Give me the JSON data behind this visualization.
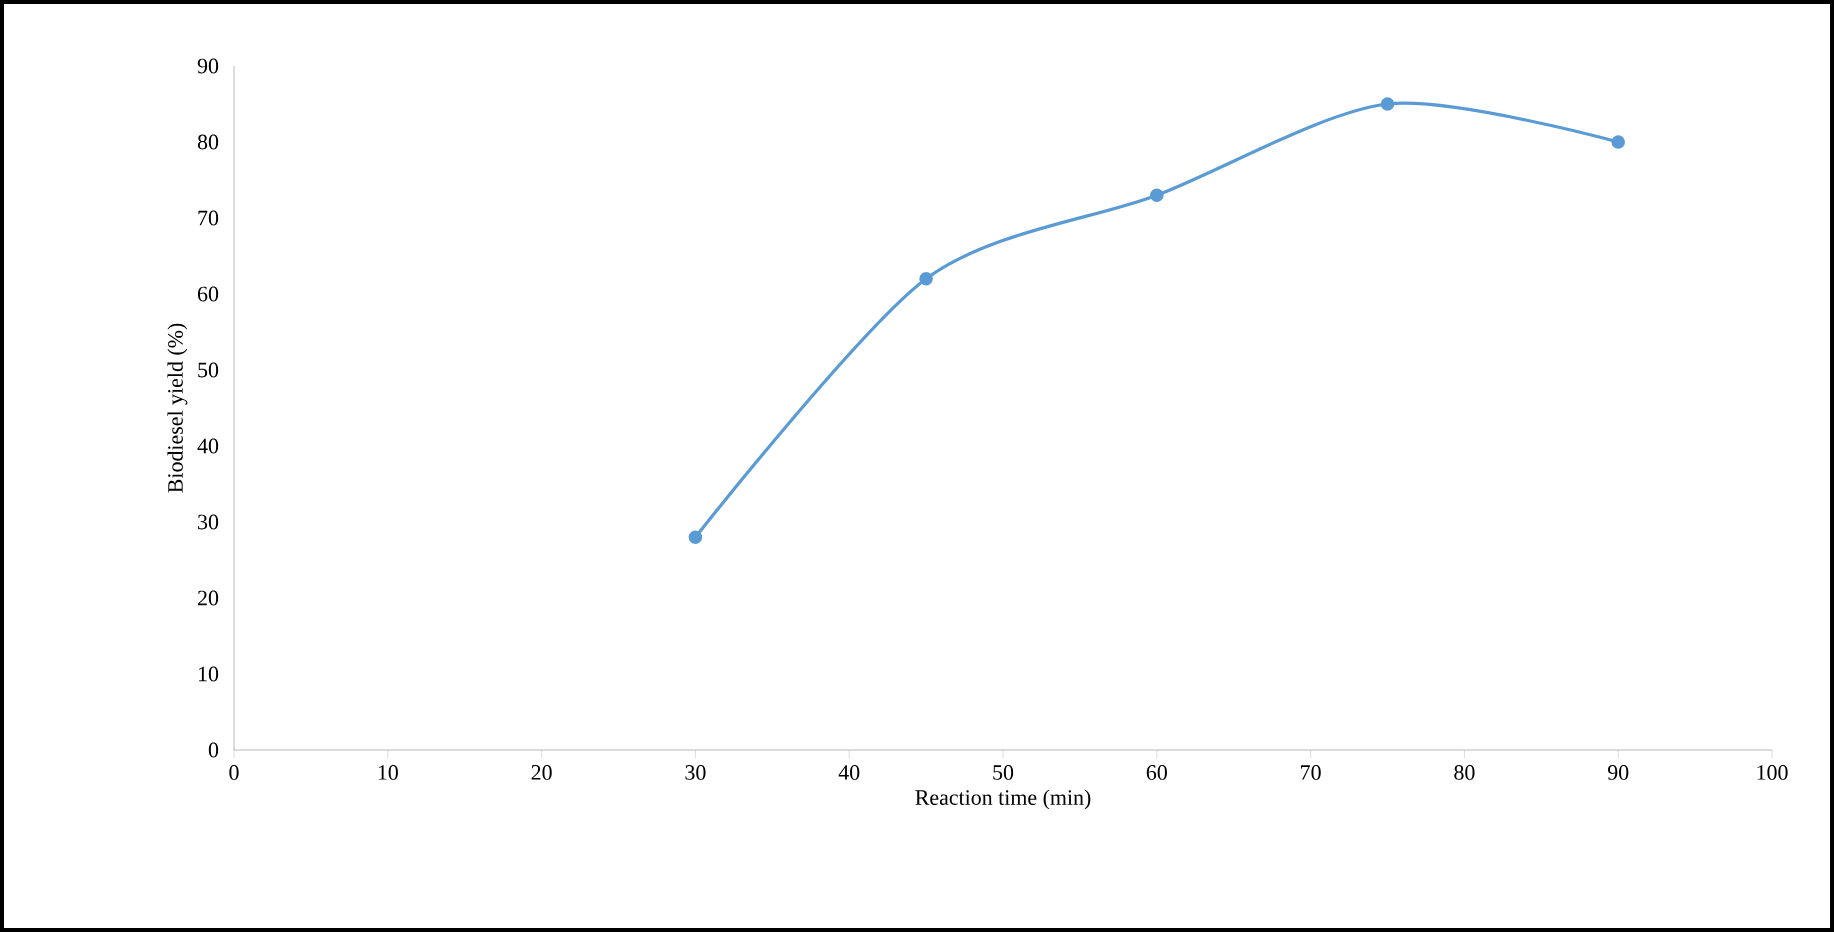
{
  "chart_data": {
    "type": "line",
    "xlabel": "Reaction time (min)",
    "ylabel": "Biodiesel yield (%)",
    "x": [
      30,
      45,
      60,
      75,
      90
    ],
    "series": [
      {
        "color": "#5b9bd5",
        "values": [
          28,
          62,
          73,
          85,
          80
        ]
      }
    ],
    "xlim": [
      0,
      100
    ],
    "xticks": [
      0,
      10,
      20,
      30,
      40,
      50,
      60,
      70,
      80,
      90,
      100
    ],
    "ylim": [
      0,
      90
    ],
    "yticks": [
      0,
      10,
      20,
      30,
      40,
      50,
      60,
      70,
      80,
      90
    ],
    "marker": "circle",
    "line_style": "solid"
  }
}
